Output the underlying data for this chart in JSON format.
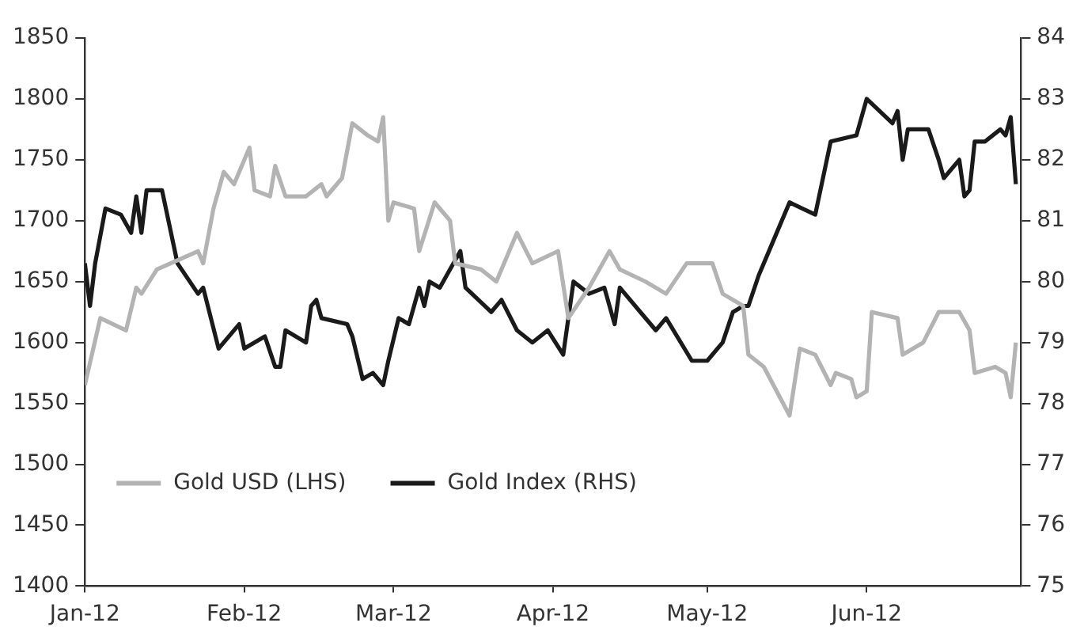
{
  "chart_data": {
    "type": "line",
    "legend": "bottom left",
    "grid": false,
    "marker": "none",
    "line_style": "solid",
    "xlim": [
      "2012-01-01",
      "2012-07-01"
    ],
    "xticks": [
      {
        "value": "2012-01-01",
        "label": "Jan-12"
      },
      {
        "value": "2012-02-01",
        "label": "Feb-12"
      },
      {
        "value": "2012-03-01",
        "label": "Mar-12"
      },
      {
        "value": "2012-04-01",
        "label": "Apr-12"
      },
      {
        "value": "2012-05-01",
        "label": "May-12"
      },
      {
        "value": "2012-06-01",
        "label": "Jun-12"
      }
    ],
    "ylim": [
      1400,
      1850
    ],
    "yticks": [
      1400,
      1450,
      1500,
      1550,
      1600,
      1650,
      1700,
      1750,
      1800,
      1850
    ],
    "y2lim": [
      75,
      84
    ],
    "y2ticks": [
      75,
      76,
      77,
      78,
      79,
      80,
      81,
      82,
      83,
      84
    ],
    "series": [
      {
        "name": "Gold USD (LHS)",
        "color": "#b3b3b3",
        "axis": "y",
        "x": [
          "2012-01-01",
          "2012-01-04",
          "2012-01-09",
          "2012-01-11",
          "2012-01-12",
          "2012-01-15",
          "2012-01-23",
          "2012-01-24",
          "2012-01-26",
          "2012-01-28",
          "2012-01-30",
          "2012-02-02",
          "2012-02-03",
          "2012-02-06",
          "2012-02-07",
          "2012-02-09",
          "2012-02-13",
          "2012-02-16",
          "2012-02-17",
          "2012-02-20",
          "2012-02-22",
          "2012-02-25",
          "2012-02-27",
          "2012-02-28",
          "2012-02-29",
          "2012-03-01",
          "2012-03-05",
          "2012-03-06",
          "2012-03-09",
          "2012-03-12",
          "2012-03-13",
          "2012-03-18",
          "2012-03-21",
          "2012-03-25",
          "2012-03-28",
          "2012-04-02",
          "2012-04-04",
          "2012-04-08",
          "2012-04-12",
          "2012-04-14",
          "2012-04-19",
          "2012-04-23",
          "2012-04-27",
          "2012-05-02",
          "2012-05-04",
          "2012-05-08",
          "2012-05-09",
          "2012-05-12",
          "2012-05-17",
          "2012-05-19",
          "2012-05-22",
          "2012-05-25",
          "2012-05-26",
          "2012-05-29",
          "2012-05-30",
          "2012-06-01",
          "2012-06-02",
          "2012-06-07",
          "2012-06-08",
          "2012-06-12",
          "2012-06-15",
          "2012-06-19",
          "2012-06-21",
          "2012-06-22",
          "2012-06-26",
          "2012-06-28",
          "2012-06-29",
          "2012-06-30"
        ],
        "values": [
          1565,
          1620,
          1610,
          1645,
          1640,
          1660,
          1675,
          1665,
          1710,
          1740,
          1730,
          1760,
          1725,
          1720,
          1745,
          1720,
          1720,
          1730,
          1720,
          1735,
          1780,
          1770,
          1765,
          1785,
          1700,
          1715,
          1710,
          1675,
          1715,
          1700,
          1665,
          1660,
          1650,
          1690,
          1665,
          1675,
          1620,
          1645,
          1675,
          1660,
          1650,
          1640,
          1665,
          1665,
          1640,
          1630,
          1590,
          1580,
          1540,
          1595,
          1590,
          1565,
          1575,
          1570,
          1555,
          1560,
          1625,
          1620,
          1590,
          1600,
          1625,
          1625,
          1610,
          1575,
          1580,
          1575,
          1555,
          1600
        ]
      },
      {
        "name": "Gold Index (RHS)",
        "color": "#1a1a1a",
        "axis": "y2",
        "x": [
          "2012-01-01",
          "2012-01-02",
          "2012-01-03",
          "2012-01-05",
          "2012-01-08",
          "2012-01-10",
          "2012-01-11",
          "2012-01-12",
          "2012-01-13",
          "2012-01-16",
          "2012-01-19",
          "2012-01-23",
          "2012-01-24",
          "2012-01-27",
          "2012-01-31",
          "2012-02-01",
          "2012-02-05",
          "2012-02-07",
          "2012-02-08",
          "2012-02-09",
          "2012-02-13",
          "2012-02-14",
          "2012-02-15",
          "2012-02-16",
          "2012-02-21",
          "2012-02-22",
          "2012-02-24",
          "2012-02-26",
          "2012-02-28",
          "2012-02-29",
          "2012-03-02",
          "2012-03-04",
          "2012-03-06",
          "2012-03-07",
          "2012-03-08",
          "2012-03-10",
          "2012-03-12",
          "2012-03-14",
          "2012-03-15",
          "2012-03-20",
          "2012-03-22",
          "2012-03-25",
          "2012-03-28",
          "2012-03-31",
          "2012-04-03",
          "2012-04-05",
          "2012-04-08",
          "2012-04-11",
          "2012-04-13",
          "2012-04-14",
          "2012-04-18",
          "2012-04-21",
          "2012-04-23",
          "2012-04-28",
          "2012-05-01",
          "2012-05-04",
          "2012-05-06",
          "2012-05-08",
          "2012-05-09",
          "2012-05-11",
          "2012-05-14",
          "2012-05-17",
          "2012-05-22",
          "2012-05-25",
          "2012-05-30",
          "2012-06-01",
          "2012-06-06",
          "2012-06-07",
          "2012-06-08",
          "2012-06-09",
          "2012-06-13",
          "2012-06-15",
          "2012-06-16",
          "2012-06-19",
          "2012-06-20",
          "2012-06-21",
          "2012-06-22",
          "2012-06-24",
          "2012-06-27",
          "2012-06-28",
          "2012-06-29",
          "2012-06-30"
        ],
        "values": [
          80.3,
          79.6,
          80.3,
          81.2,
          81.1,
          80.8,
          81.4,
          80.8,
          81.5,
          81.5,
          80.3,
          79.8,
          79.9,
          78.9,
          79.3,
          78.9,
          79.1,
          78.6,
          78.6,
          79.2,
          79.0,
          79.6,
          79.7,
          79.4,
          79.3,
          79.1,
          78.4,
          78.5,
          78.3,
          78.7,
          79.4,
          79.3,
          79.9,
          79.6,
          80.0,
          79.9,
          80.2,
          80.5,
          79.9,
          79.5,
          79.7,
          79.2,
          79.0,
          79.2,
          78.8,
          80.0,
          79.8,
          79.9,
          79.3,
          79.9,
          79.5,
          79.2,
          79.4,
          78.7,
          78.7,
          79.0,
          79.5,
          79.6,
          79.6,
          80.1,
          80.7,
          81.3,
          81.1,
          82.3,
          82.4,
          83.0,
          82.6,
          82.8,
          82.0,
          82.5,
          82.5,
          82.0,
          81.7,
          82.0,
          81.4,
          81.5,
          82.3,
          82.3,
          82.5,
          82.4,
          82.7,
          81.6
        ]
      }
    ]
  }
}
